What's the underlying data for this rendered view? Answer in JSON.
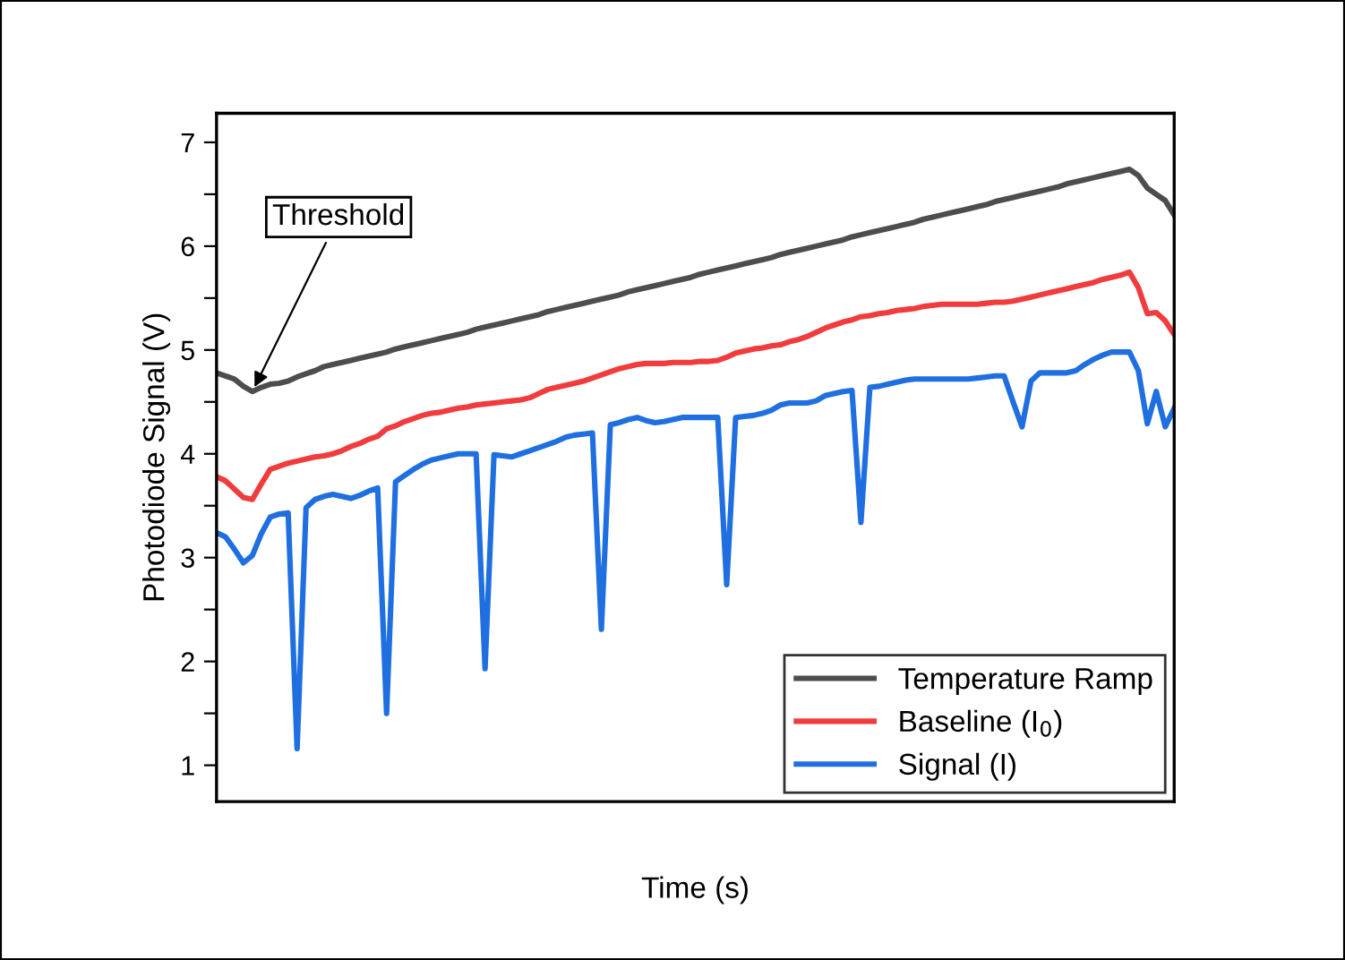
{
  "chart_data": {
    "type": "line",
    "xlabel": "Time (s)",
    "ylabel": "Photodiode Signal (V)",
    "ylim": [
      0.65,
      7.28
    ],
    "yticks": [
      1,
      {
        "value": 1.5,
        "label": null
      },
      2,
      {
        "value": 2.5,
        "label": null
      },
      3,
      {
        "value": 3.5,
        "label": null
      },
      4,
      {
        "value": 4.5,
        "label": null
      },
      5,
      {
        "value": 5.5,
        "label": null
      },
      6,
      {
        "value": 6.5,
        "label": null
      },
      7
    ],
    "tick_labels": "y",
    "legend": "bottom right",
    "grid": false,
    "marker": "none",
    "line_style": "solid",
    "annotations": [
      "Threshold"
    ],
    "categories": [
      null,
      null,
      null,
      null,
      null,
      null,
      null,
      null,
      null,
      null,
      null,
      null,
      null,
      null,
      null,
      null,
      null,
      null,
      null,
      null,
      null,
      null,
      null,
      null,
      null,
      null,
      null,
      null,
      null,
      null,
      null,
      null,
      null,
      null,
      null,
      null,
      null,
      null,
      null,
      null,
      null,
      null,
      null,
      null,
      null,
      null,
      null,
      null,
      null,
      null,
      null,
      null,
      null,
      null,
      null,
      null,
      null,
      null,
      null,
      null,
      null,
      null,
      null,
      null,
      null,
      null,
      null,
      null,
      null,
      null,
      null,
      null,
      null,
      null,
      null,
      null,
      null,
      null,
      null,
      null,
      null,
      null,
      null,
      null,
      null,
      null,
      null,
      null,
      null,
      null,
      null,
      null,
      null,
      null,
      null,
      null,
      null,
      null,
      null,
      null,
      null,
      null,
      null,
      null,
      null,
      null,
      null,
      null
    ],
    "series": [
      {
        "name": "Temperature Ramp",
        "color": "#4d4d4d",
        "values": [
          4.78,
          4.75,
          4.72,
          4.65,
          4.6,
          4.64,
          4.67,
          4.68,
          4.7,
          4.74,
          4.77,
          4.8,
          4.84,
          4.86,
          4.88,
          4.9,
          4.92,
          4.94,
          4.96,
          4.98,
          5.01,
          5.03,
          5.05,
          5.07,
          5.09,
          5.11,
          5.13,
          5.15,
          5.17,
          5.2,
          5.22,
          5.24,
          5.26,
          5.28,
          5.3,
          5.32,
          5.34,
          5.37,
          5.39,
          5.41,
          5.43,
          5.45,
          5.47,
          5.49,
          5.51,
          5.53,
          5.56,
          5.58,
          5.6,
          5.62,
          5.64,
          5.66,
          5.68,
          5.7,
          5.73,
          5.75,
          5.77,
          5.79,
          5.81,
          5.83,
          5.85,
          5.87,
          5.89,
          5.92,
          5.94,
          5.96,
          5.98,
          6.0,
          6.02,
          6.04,
          6.06,
          6.09,
          6.11,
          6.13,
          6.15,
          6.17,
          6.19,
          6.21,
          6.23,
          6.26,
          6.28,
          6.3,
          6.32,
          6.34,
          6.36,
          6.38,
          6.4,
          6.43,
          6.45,
          6.47,
          6.49,
          6.51,
          6.53,
          6.55,
          6.57,
          6.6,
          6.62,
          6.64,
          6.66,
          6.68,
          6.7,
          6.72,
          6.74,
          6.68,
          6.56,
          6.5,
          6.44,
          6.3
        ]
      },
      {
        "name": "Baseline (I$_{0}$)",
        "color": "#f03c3c",
        "values": [
          3.78,
          3.74,
          3.66,
          3.58,
          3.56,
          3.71,
          3.85,
          3.88,
          3.91,
          3.93,
          3.95,
          3.97,
          3.98,
          4.0,
          4.03,
          4.07,
          4.1,
          4.14,
          4.17,
          4.24,
          4.27,
          4.31,
          4.34,
          4.37,
          4.39,
          4.4,
          4.42,
          4.44,
          4.45,
          4.47,
          4.48,
          4.49,
          4.5,
          4.51,
          4.52,
          4.54,
          4.58,
          4.62,
          4.64,
          4.66,
          4.68,
          4.7,
          4.73,
          4.76,
          4.79,
          4.82,
          4.84,
          4.86,
          4.87,
          4.87,
          4.87,
          4.88,
          4.88,
          4.88,
          4.89,
          4.89,
          4.9,
          4.93,
          4.97,
          4.99,
          5.01,
          5.02,
          5.04,
          5.05,
          5.08,
          5.1,
          5.13,
          5.17,
          5.21,
          5.24,
          5.27,
          5.29,
          5.32,
          5.33,
          5.35,
          5.36,
          5.38,
          5.39,
          5.4,
          5.42,
          5.43,
          5.44,
          5.44,
          5.44,
          5.44,
          5.44,
          5.45,
          5.46,
          5.46,
          5.47,
          5.49,
          5.51,
          5.53,
          5.55,
          5.57,
          5.59,
          5.61,
          5.63,
          5.65,
          5.68,
          5.7,
          5.72,
          5.75,
          5.6,
          5.35,
          5.36,
          5.28,
          5.15
        ]
      },
      {
        "name": "Signal (I)",
        "color": "#1f6fe0",
        "values": [
          3.24,
          3.2,
          3.08,
          2.95,
          3.02,
          3.23,
          3.39,
          3.42,
          3.43,
          1.16,
          3.48,
          3.56,
          3.59,
          3.61,
          3.59,
          3.57,
          3.6,
          3.64,
          3.67,
          1.5,
          3.73,
          3.79,
          3.85,
          3.9,
          3.94,
          3.96,
          3.98,
          4.0,
          4.0,
          4.0,
          1.93,
          3.99,
          3.98,
          3.97,
          4.0,
          4.03,
          4.06,
          4.09,
          4.12,
          4.16,
          4.18,
          4.19,
          4.2,
          2.31,
          4.28,
          4.3,
          4.33,
          4.35,
          4.32,
          4.3,
          4.31,
          4.33,
          4.35,
          4.35,
          4.35,
          4.35,
          4.35,
          2.74,
          4.35,
          4.36,
          4.37,
          4.39,
          4.42,
          4.47,
          4.49,
          4.49,
          4.49,
          4.51,
          4.56,
          4.58,
          4.6,
          4.61,
          3.34,
          4.64,
          4.65,
          4.67,
          4.69,
          4.71,
          4.72,
          4.72,
          4.72,
          4.72,
          4.72,
          4.72,
          4.72,
          4.73,
          4.74,
          4.75,
          4.75,
          4.5,
          4.26,
          4.7,
          4.78,
          4.78,
          4.78,
          4.78,
          4.8,
          4.86,
          4.91,
          4.95,
          4.98,
          4.98,
          4.98,
          4.8,
          4.29,
          4.6,
          4.26,
          4.44
        ]
      }
    ]
  }
}
